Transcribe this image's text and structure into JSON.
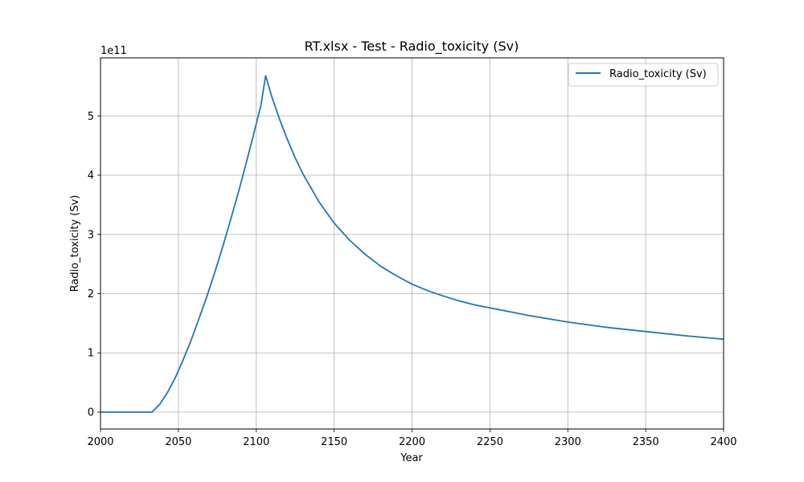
{
  "chart_data": {
    "type": "line",
    "title": "RT.xlsx - Test - Radio_toxicity (Sv)",
    "xlabel": "Year",
    "ylabel": "Radio_toxicity (Sv)",
    "y_offset_label": "1e11",
    "xlim": [
      2000,
      2400
    ],
    "ylim": [
      -28500000000.0,
      598000000000.0
    ],
    "x_ticks": [
      2000,
      2050,
      2100,
      2150,
      2200,
      2250,
      2300,
      2350,
      2400
    ],
    "y_ticks": [
      0,
      100000000000.0,
      200000000000.0,
      300000000000.0,
      400000000000.0,
      500000000000.0
    ],
    "x_tick_labels": [
      "2000",
      "2050",
      "2100",
      "2150",
      "2200",
      "2250",
      "2300",
      "2350",
      "2400"
    ],
    "y_tick_labels": [
      "0",
      "1",
      "2",
      "3",
      "4",
      "5"
    ],
    "grid": true,
    "legend": "top-right",
    "series_color": "#1f77b4",
    "series": [
      {
        "name": "Radio_toxicity (Sv)",
        "x": [
          2000,
          2010,
          2020,
          2030,
          2033,
          2038,
          2043,
          2048,
          2053,
          2058,
          2063,
          2068,
          2073,
          2078,
          2083,
          2088,
          2093,
          2098,
          2103,
          2106,
          2110,
          2115,
          2120,
          2125,
          2130,
          2140,
          2150,
          2160,
          2170,
          2180,
          2190,
          2200,
          2210,
          2220,
          2230,
          2240,
          2250,
          2275,
          2300,
          2325,
          2350,
          2375,
          2400
        ],
        "y": [
          0,
          0,
          0,
          0,
          0,
          13000000000.0,
          33000000000.0,
          58000000000.0,
          88000000000.0,
          120000000000.0,
          156000000000.0,
          193000000000.0,
          233000000000.0,
          275000000000.0,
          320000000000.0,
          366000000000.0,
          415000000000.0,
          466000000000.0,
          518000000000.0,
          568000000000.0,
          532000000000.0,
          494000000000.0,
          460000000000.0,
          429000000000.0,
          402000000000.0,
          356000000000.0,
          319000000000.0,
          290000000000.0,
          266000000000.0,
          246000000000.0,
          230000000000.0,
          216000000000.0,
          205000000000.0,
          196000000000.0,
          188000000000.0,
          181000000000.0,
          176000000000.0,
          163000000000.0,
          152000000000.0,
          143000000000.0,
          136000000000.0,
          129000000000.0,
          123000000000.0
        ]
      }
    ]
  }
}
